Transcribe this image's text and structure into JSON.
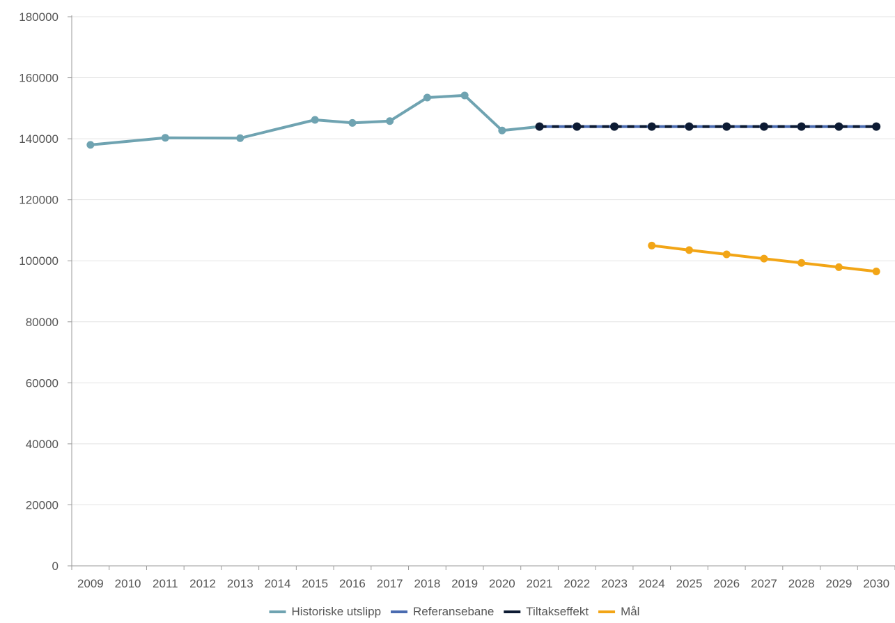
{
  "chart_data": {
    "type": "line",
    "title": "",
    "xlabel": "",
    "ylabel": "",
    "categories": [
      "2009",
      "2010",
      "2011",
      "2012",
      "2013",
      "2014",
      "2015",
      "2016",
      "2017",
      "2018",
      "2019",
      "2020",
      "2021",
      "2022",
      "2023",
      "2024",
      "2025",
      "2026",
      "2027",
      "2028",
      "2029",
      "2030"
    ],
    "ylim": [
      0,
      180000
    ],
    "yticks": [
      0,
      20000,
      40000,
      60000,
      80000,
      100000,
      120000,
      140000,
      160000,
      180000
    ],
    "grid": "horizontal",
    "legend_position": "bottom",
    "series": [
      {
        "name": "Historiske utslipp",
        "color": "#6fa3b1",
        "values": [
          138000,
          null,
          140300,
          null,
          140200,
          null,
          146200,
          145200,
          145800,
          153500,
          154200,
          142700,
          144000,
          null,
          null,
          null,
          null,
          null,
          null,
          null,
          null,
          null
        ]
      },
      {
        "name": "Referansebane",
        "color": "#4a6bb0",
        "values": [
          null,
          null,
          null,
          null,
          null,
          null,
          null,
          null,
          null,
          null,
          null,
          null,
          144000,
          144000,
          144000,
          144000,
          144000,
          144000,
          144000,
          144000,
          144000,
          144000
        ]
      },
      {
        "name": "Tiltakseffekt",
        "color": "#0d1b33",
        "dashed": true,
        "values": [
          null,
          null,
          null,
          null,
          null,
          null,
          null,
          null,
          null,
          null,
          null,
          null,
          144000,
          144000,
          144000,
          144000,
          144000,
          144000,
          144000,
          144000,
          144000,
          144000
        ]
      },
      {
        "name": "Mål",
        "color": "#f2a516",
        "values": [
          null,
          null,
          null,
          null,
          null,
          null,
          null,
          null,
          null,
          null,
          null,
          null,
          null,
          null,
          null,
          105000,
          103500,
          102100,
          100700,
          99300,
          97900,
          96500
        ]
      }
    ]
  }
}
